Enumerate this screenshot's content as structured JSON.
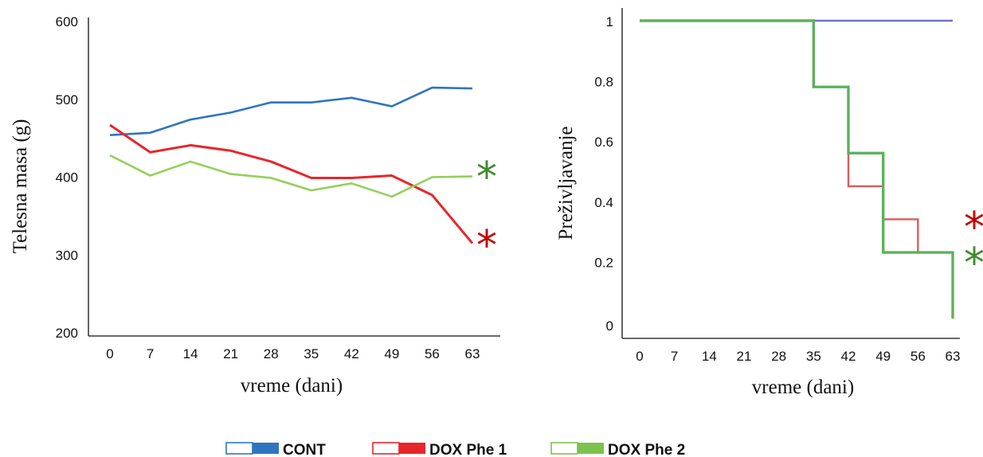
{
  "colors": {
    "cont": "#2e75c0",
    "cont_surv": "#6f6fd6",
    "dox1": "#e8262a",
    "dox1_surv": "#d95b5b",
    "dox2": "#92d05a",
    "dox2_surv": "#5bb35b",
    "star_red": "#c00000",
    "star_green": "#3f8a2e",
    "axis": "#111111"
  },
  "legend": [
    {
      "label": "CONT",
      "color": "#2e75c0"
    },
    {
      "label": "DOX Phe 1",
      "color": "#e8262a"
    },
    {
      "label": "DOX Phe 2",
      "color": "#7cc24e"
    }
  ],
  "chart_data": [
    {
      "type": "line",
      "title": "",
      "xlabel": "vreme (dani)",
      "ylabel": "Telesna masa (g)",
      "x": [
        0,
        7,
        14,
        21,
        28,
        35,
        42,
        49,
        56,
        63
      ],
      "y_ticks": [
        "600",
        "500",
        "400",
        "300",
        "200"
      ],
      "ylim": [
        200,
        600
      ],
      "series": [
        {
          "key": "cont",
          "values": [
            454,
            457,
            474,
            483,
            496,
            496,
            502,
            491,
            515,
            514
          ]
        },
        {
          "key": "dox1",
          "values": [
            467,
            432,
            441,
            434,
            420,
            399,
            399,
            402,
            377,
            315
          ]
        },
        {
          "key": "dox2",
          "values": [
            428,
            402,
            420,
            404,
            399,
            383,
            392,
            375,
            400,
            401
          ]
        }
      ],
      "annotations": [
        {
          "text": "*",
          "series": "dox2"
        },
        {
          "text": "*",
          "series": "dox1"
        }
      ]
    },
    {
      "type": "line",
      "title": "",
      "xlabel": "vreme (dani)",
      "ylabel": "Preživljavanje",
      "x": [
        0,
        7,
        14,
        21,
        28,
        35,
        42,
        49,
        56,
        63
      ],
      "y_ticks": [
        "1",
        "0.8",
        "0.6",
        "0.4",
        "0.2",
        "0"
      ],
      "ylim": [
        0,
        1
      ],
      "step": true,
      "series": [
        {
          "key": "cont",
          "points": [
            [
              0,
              1
            ],
            [
              63,
              1
            ]
          ]
        },
        {
          "key": "dox1",
          "points": [
            [
              0,
              1
            ],
            [
              35,
              1
            ],
            [
              35,
              0.78
            ],
            [
              42,
              0.78
            ],
            [
              42,
              0.45
            ],
            [
              49,
              0.45
            ],
            [
              49,
              0.34
            ],
            [
              56,
              0.34
            ],
            [
              56,
              0.23
            ],
            [
              63,
              0.23
            ],
            [
              63,
              0.01
            ]
          ]
        },
        {
          "key": "dox2",
          "points": [
            [
              0,
              1
            ],
            [
              35,
              1
            ],
            [
              35,
              0.78
            ],
            [
              42,
              0.78
            ],
            [
              42,
              0.56
            ],
            [
              49,
              0.56
            ],
            [
              49,
              0.23
            ],
            [
              63,
              0.23
            ],
            [
              63,
              0.01
            ]
          ]
        }
      ],
      "annotations": [
        {
          "text": "*",
          "series": "dox1"
        },
        {
          "text": "*",
          "series": "dox2"
        }
      ]
    }
  ]
}
